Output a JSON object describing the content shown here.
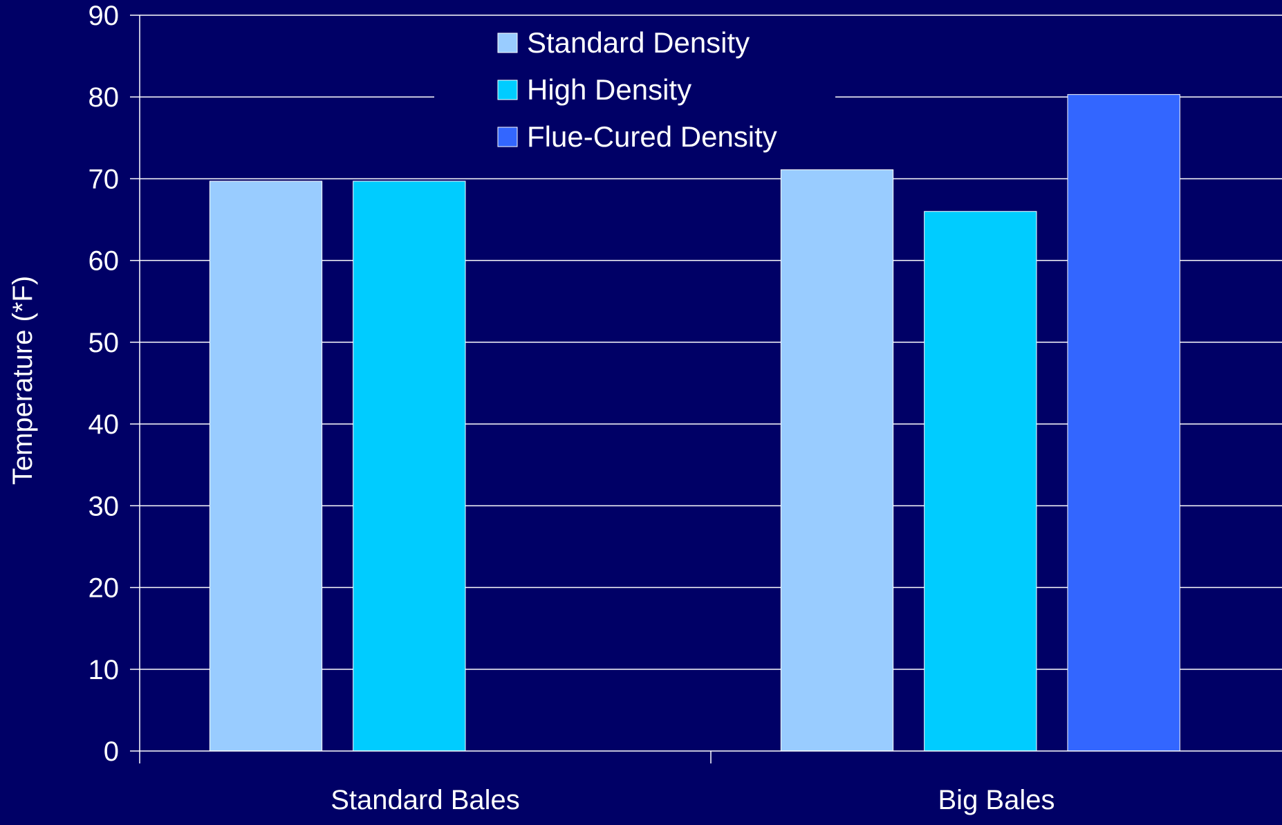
{
  "chart_data": {
    "type": "bar",
    "categories": [
      "Standard Bales",
      "Big Bales"
    ],
    "series": [
      {
        "name": "Standard Density",
        "values": [
          69.7,
          71.1
        ],
        "color": "#99ccff"
      },
      {
        "name": "High Density",
        "values": [
          69.7,
          66.0
        ],
        "color": "#00ccff"
      },
      {
        "name": "Flue-Cured Density",
        "values": [
          null,
          80.3
        ],
        "color": "#3366ff"
      }
    ],
    "ylabel": "Temperature (*F)",
    "ylim": [
      0,
      90
    ],
    "yticks": [
      0,
      10,
      20,
      30,
      40,
      50,
      60,
      70,
      80,
      90
    ],
    "grid": true,
    "legend_position": "top-center",
    "background_color": "#000066",
    "gridline_color": "#ffffff",
    "text_color": "#ffffff"
  }
}
